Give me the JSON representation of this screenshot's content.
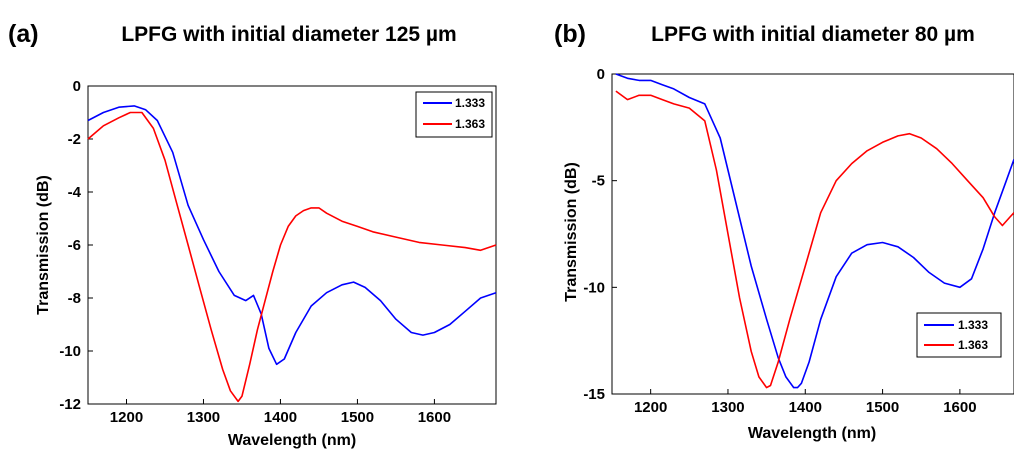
{
  "chart_data": [
    {
      "type": "line",
      "panel_label": "(a)",
      "title": "LPFG with initial diameter 125 µm",
      "xlabel": "Wavelength (nm)",
      "ylabel": "Transmission (dB)",
      "xlim": [
        1150,
        1680
      ],
      "ylim": [
        -12,
        0
      ],
      "xticks": [
        1200,
        1300,
        1400,
        1500,
        1600
      ],
      "xtick_labels": [
        "1200",
        "1300",
        "1400",
        "1500",
        "1600"
      ],
      "yticks": [
        0,
        -2,
        -4,
        -6,
        -8,
        -10,
        -12
      ],
      "ytick_labels": [
        "0",
        "-2",
        "-4",
        "-6",
        "-8",
        "-10",
        "-12"
      ],
      "legend_position": "top-right",
      "grid": false,
      "series": [
        {
          "name": "1.333",
          "color": "#0000ff",
          "x": [
            1150,
            1170,
            1190,
            1210,
            1225,
            1240,
            1260,
            1280,
            1300,
            1320,
            1340,
            1355,
            1365,
            1375,
            1385,
            1395,
            1405,
            1420,
            1440,
            1460,
            1480,
            1495,
            1510,
            1530,
            1550,
            1570,
            1585,
            1600,
            1620,
            1640,
            1660,
            1680
          ],
          "y": [
            -1.3,
            -1.0,
            -0.8,
            -0.75,
            -0.9,
            -1.3,
            -2.5,
            -4.5,
            -5.8,
            -7.0,
            -7.9,
            -8.1,
            -7.9,
            -8.6,
            -9.9,
            -10.5,
            -10.3,
            -9.3,
            -8.3,
            -7.8,
            -7.5,
            -7.4,
            -7.6,
            -8.1,
            -8.8,
            -9.3,
            -9.4,
            -9.3,
            -9.0,
            -8.5,
            -8.0,
            -7.8
          ]
        },
        {
          "name": "1.363",
          "color": "#ff0000",
          "x": [
            1150,
            1170,
            1190,
            1205,
            1220,
            1235,
            1250,
            1265,
            1280,
            1295,
            1310,
            1325,
            1335,
            1345,
            1350,
            1360,
            1370,
            1380,
            1390,
            1400,
            1410,
            1420,
            1430,
            1440,
            1450,
            1460,
            1480,
            1500,
            1520,
            1550,
            1580,
            1610,
            1640,
            1660,
            1680
          ],
          "y": [
            -2.0,
            -1.5,
            -1.2,
            -1.0,
            -1.0,
            -1.6,
            -2.8,
            -4.4,
            -6.0,
            -7.6,
            -9.2,
            -10.7,
            -11.5,
            -11.9,
            -11.7,
            -10.5,
            -9.2,
            -8.1,
            -7.0,
            -6.0,
            -5.3,
            -4.9,
            -4.7,
            -4.6,
            -4.6,
            -4.8,
            -5.1,
            -5.3,
            -5.5,
            -5.7,
            -5.9,
            -6.0,
            -6.1,
            -6.2,
            -6.0
          ]
        }
      ]
    },
    {
      "type": "line",
      "panel_label": "(b)",
      "title": "LPFG with initial diameter 80 µm",
      "xlabel": "Wavelength (nm)",
      "ylabel": "Transmission (dB)",
      "xlim": [
        1150,
        1670
      ],
      "ylim": [
        -15,
        0
      ],
      "xticks": [
        1200,
        1300,
        1400,
        1500,
        1600
      ],
      "xtick_labels": [
        "1200",
        "1300",
        "1400",
        "1500",
        "1600"
      ],
      "yticks": [
        0,
        -5,
        -10,
        -15
      ],
      "ytick_labels": [
        "0",
        "-5",
        "-10",
        "-15"
      ],
      "legend_position": "bottom-right",
      "grid": false,
      "series": [
        {
          "name": "1.333",
          "color": "#0000ff",
          "x": [
            1155,
            1170,
            1185,
            1200,
            1215,
            1230,
            1250,
            1270,
            1290,
            1310,
            1330,
            1350,
            1365,
            1375,
            1385,
            1390,
            1395,
            1405,
            1420,
            1440,
            1460,
            1480,
            1500,
            1520,
            1540,
            1560,
            1580,
            1600,
            1615,
            1630,
            1645,
            1660,
            1670
          ],
          "y": [
            0,
            -0.2,
            -0.3,
            -0.3,
            -0.5,
            -0.7,
            -1.1,
            -1.4,
            -3.0,
            -6.0,
            -9.0,
            -11.5,
            -13.3,
            -14.2,
            -14.7,
            -14.7,
            -14.5,
            -13.5,
            -11.5,
            -9.5,
            -8.4,
            -8.0,
            -7.9,
            -8.1,
            -8.6,
            -9.3,
            -9.8,
            -10.0,
            -9.6,
            -8.2,
            -6.5,
            -5.0,
            -4.0
          ]
        },
        {
          "name": "1.363",
          "color": "#ff0000",
          "x": [
            1155,
            1170,
            1185,
            1200,
            1215,
            1230,
            1250,
            1270,
            1285,
            1300,
            1315,
            1330,
            1340,
            1350,
            1355,
            1365,
            1380,
            1400,
            1420,
            1440,
            1460,
            1480,
            1500,
            1520,
            1535,
            1550,
            1570,
            1590,
            1610,
            1630,
            1645,
            1655,
            1665,
            1670
          ],
          "y": [
            -0.8,
            -1.2,
            -1.0,
            -1.0,
            -1.2,
            -1.4,
            -1.6,
            -2.2,
            -4.5,
            -7.5,
            -10.5,
            -13.0,
            -14.2,
            -14.7,
            -14.6,
            -13.5,
            -11.5,
            -9.0,
            -6.5,
            -5.0,
            -4.2,
            -3.6,
            -3.2,
            -2.9,
            -2.8,
            -3.0,
            -3.5,
            -4.2,
            -5.0,
            -5.8,
            -6.7,
            -7.1,
            -6.7,
            -6.5
          ]
        }
      ]
    }
  ]
}
